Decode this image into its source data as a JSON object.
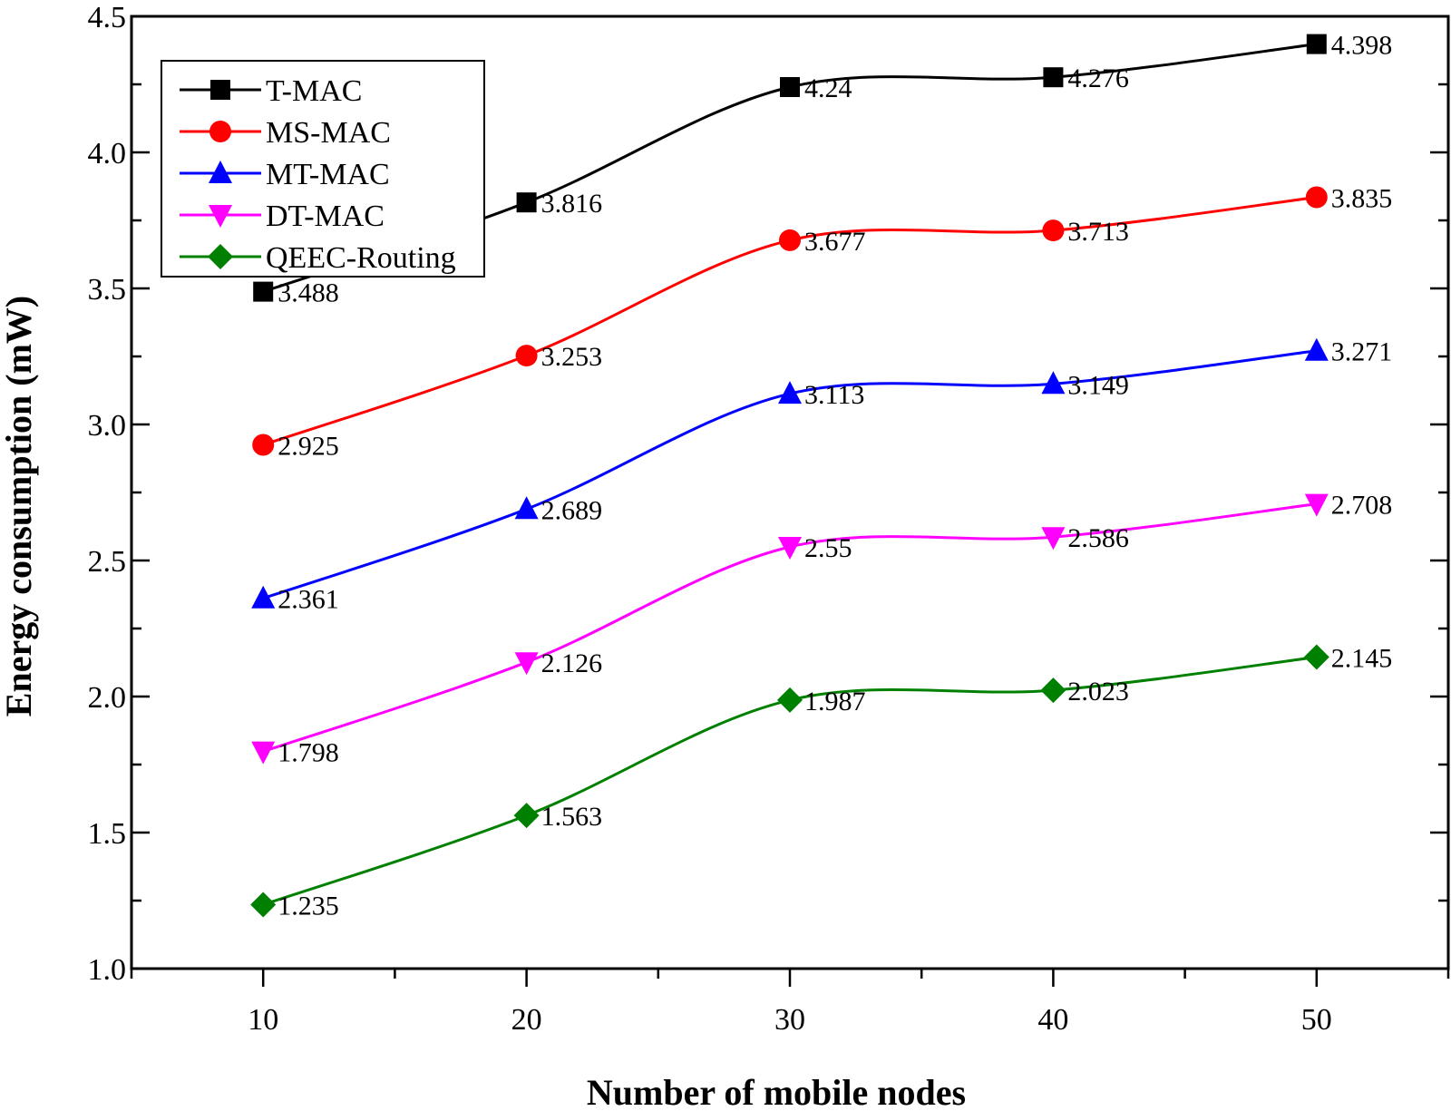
{
  "chart_data": {
    "type": "line",
    "xlabel": "Number of mobile nodes",
    "ylabel": "Energy consumption (mW)",
    "x": [
      10,
      20,
      30,
      40,
      50
    ],
    "xlim": [
      5,
      55
    ],
    "ylim": [
      1.0,
      4.5
    ],
    "x_ticks": [
      "10",
      "20",
      "30",
      "40",
      "50"
    ],
    "y_ticks": [
      "1.0",
      "1.5",
      "2.0",
      "2.5",
      "3.0",
      "3.5",
      "4.0",
      "4.5"
    ],
    "grid": false,
    "legend_position": "top-left",
    "series": [
      {
        "name": "T-MAC",
        "color": "#000000",
        "marker": "square",
        "values": [
          3.488,
          3.816,
          4.24,
          4.276,
          4.398
        ],
        "labels": [
          "3.488",
          "3.816",
          "4.24",
          "4.276",
          "4.398"
        ]
      },
      {
        "name": "MS-MAC",
        "color": "#ff0000",
        "marker": "circle",
        "values": [
          2.925,
          3.253,
          3.677,
          3.713,
          3.835
        ],
        "labels": [
          "2.925",
          "3.253",
          "3.677",
          "3.713",
          "3.835"
        ]
      },
      {
        "name": "MT-MAC",
        "color": "#0000ff",
        "marker": "triangle-up",
        "values": [
          2.361,
          2.689,
          3.113,
          3.149,
          3.271
        ],
        "labels": [
          "2.361",
          "2.689",
          "3.113",
          "3.149",
          "3.271"
        ]
      },
      {
        "name": "DT-MAC",
        "color": "#ff00ff",
        "marker": "triangle-down",
        "values": [
          1.798,
          2.126,
          2.55,
          2.586,
          2.708
        ],
        "labels": [
          "1.798",
          "2.126",
          "2.55",
          "2.586",
          "2.708"
        ]
      },
      {
        "name": "QEEC-Routing",
        "color": "#008000",
        "marker": "diamond",
        "values": [
          1.235,
          1.563,
          1.987,
          2.023,
          2.145
        ],
        "labels": [
          "1.235",
          "1.563",
          "1.987",
          "2.023",
          "2.145"
        ]
      }
    ]
  }
}
